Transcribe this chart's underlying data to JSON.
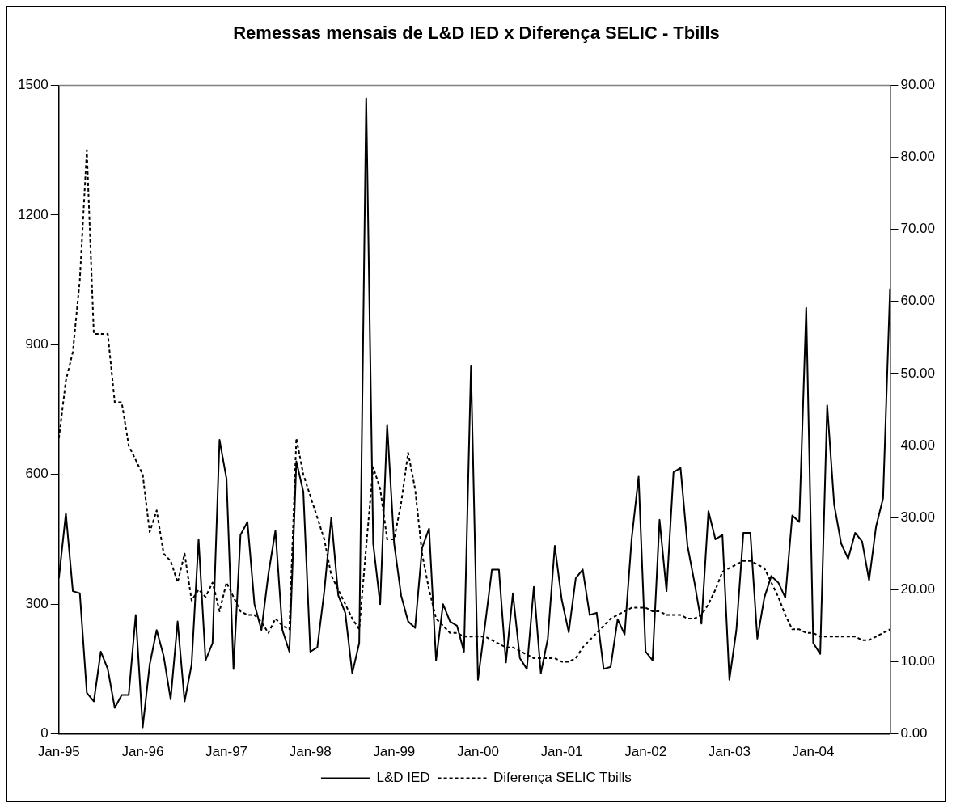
{
  "chart_data": {
    "type": "line",
    "title": "Remessas mensais de L&D IED x Diferença SELIC - Tbills",
    "categories": [
      "Jan-95",
      null,
      null,
      null,
      null,
      null,
      null,
      null,
      null,
      null,
      null,
      null,
      "Jan-96",
      null,
      null,
      null,
      null,
      null,
      null,
      null,
      null,
      null,
      null,
      null,
      "Jan-97",
      null,
      null,
      null,
      null,
      null,
      null,
      null,
      null,
      null,
      null,
      null,
      "Jan-98",
      null,
      null,
      null,
      null,
      null,
      null,
      null,
      null,
      null,
      null,
      null,
      "Jan-99",
      null,
      null,
      null,
      null,
      null,
      null,
      null,
      null,
      null,
      null,
      null,
      "Jan-00",
      null,
      null,
      null,
      null,
      null,
      null,
      null,
      null,
      null,
      null,
      null,
      "Jan-01",
      null,
      null,
      null,
      null,
      null,
      null,
      null,
      null,
      null,
      null,
      null,
      "Jan-02",
      null,
      null,
      null,
      null,
      null,
      null,
      null,
      null,
      null,
      null,
      null,
      "Jan-03",
      null,
      null,
      null,
      null,
      null,
      null,
      null,
      null,
      null,
      null,
      null,
      "Jan-04",
      null,
      null,
      null,
      null,
      null,
      null,
      null,
      null,
      null,
      null,
      null
    ],
    "series": [
      {
        "name": "L&D IED",
        "color": "#000000",
        "line_style": "solid",
        "values": [
          360,
          510,
          330,
          325,
          95,
          75,
          190,
          150,
          60,
          90,
          90,
          275,
          15,
          160,
          240,
          180,
          80,
          260,
          75,
          160,
          450,
          170,
          210,
          680,
          590,
          150,
          460,
          490,
          300,
          240,
          370,
          470,
          240,
          190,
          630,
          560,
          190,
          200,
          330,
          500,
          320,
          280,
          140,
          210,
          1470,
          440,
          300,
          715,
          440,
          320,
          260,
          245,
          430,
          475,
          170,
          300,
          260,
          250,
          190,
          850,
          125,
          250,
          380,
          380,
          165,
          325,
          175,
          150,
          340,
          140,
          220,
          435,
          310,
          235,
          360,
          380,
          275,
          280,
          150,
          155,
          265,
          230,
          450,
          595,
          190,
          170,
          495,
          330,
          605,
          615,
          435,
          350,
          255,
          515,
          450,
          460,
          125,
          240,
          465,
          465,
          220,
          315,
          365,
          350,
          315,
          505,
          490,
          985,
          210,
          185,
          760,
          530,
          440,
          405,
          465,
          445,
          355,
          480,
          545,
          1030
        ]
      },
      {
        "name": "Diferença SELIC Tbills",
        "color": "#000000",
        "line_style": "dashed",
        "axis": "y2",
        "values": [
          41,
          49,
          53,
          63,
          81,
          55.5,
          55.5,
          55.5,
          46,
          46,
          40,
          38,
          36,
          28,
          31,
          25,
          24,
          21,
          25,
          18.5,
          20,
          19,
          21,
          17,
          21,
          19,
          17,
          16.5,
          16.5,
          15.5,
          14,
          16,
          15,
          14.5,
          41,
          36,
          33,
          30,
          27,
          22,
          20,
          18,
          16,
          14.5,
          26,
          37,
          34,
          27,
          27,
          32,
          39,
          34,
          25,
          20,
          16,
          15,
          14,
          14,
          13.5,
          13.5,
          13.5,
          13.5,
          13,
          12.5,
          12,
          12,
          11.5,
          11,
          10.5,
          10.5,
          10.5,
          10.5,
          10,
          10,
          10.5,
          12,
          13,
          14,
          15,
          16,
          16.5,
          17,
          17.5,
          17.5,
          17.5,
          17,
          17,
          16.5,
          16.5,
          16.5,
          16,
          16,
          16.5,
          18,
          20,
          22.5,
          23,
          23.5,
          24,
          24,
          23.5,
          23,
          21,
          19,
          16.5,
          14.5,
          14.5,
          14,
          14,
          13.5,
          13.5,
          13.5,
          13.5,
          13.5,
          13.5,
          13,
          13,
          13.5,
          14,
          14.5
        ]
      }
    ],
    "ylim": [
      0,
      1500
    ],
    "yticks": [
      0,
      300,
      600,
      900,
      1200,
      1500
    ],
    "y2lim": [
      0,
      90
    ],
    "y2ticks": [
      {
        "value": 0,
        "label": "0.00"
      },
      {
        "value": 10,
        "label": "10.00"
      },
      {
        "value": 20,
        "label": "20.00"
      },
      {
        "value": 30,
        "label": "30.00"
      },
      {
        "value": 40,
        "label": "40.00"
      },
      {
        "value": 50,
        "label": "50.00"
      },
      {
        "value": 60,
        "label": "60.00"
      },
      {
        "value": 70,
        "label": "70.00"
      },
      {
        "value": 80,
        "label": "80.00"
      },
      {
        "value": 90,
        "label": "90.00"
      }
    ],
    "grid": false,
    "legend": "bottom",
    "marker": "none"
  }
}
